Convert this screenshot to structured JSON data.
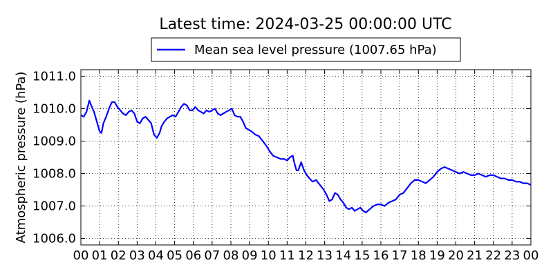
{
  "chart_data": {
    "type": "line",
    "title": "Latest time: 2024-03-25 00:00:00 UTC",
    "xlabel": "",
    "ylabel": "Atmospheric pressure (hPa)",
    "xlim": [
      0,
      24
    ],
    "ylim": [
      1005.8,
      1011.2
    ],
    "x_ticks": [
      "00",
      "01",
      "02",
      "03",
      "04",
      "05",
      "06",
      "07",
      "08",
      "09",
      "10",
      "11",
      "12",
      "13",
      "14",
      "15",
      "16",
      "17",
      "18",
      "19",
      "20",
      "21",
      "22",
      "23",
      "00"
    ],
    "y_ticks": [
      "1006.0",
      "1007.0",
      "1008.0",
      "1009.0",
      "1010.0",
      "1011.0"
    ],
    "grid": true,
    "legend_position": "top-center",
    "series": [
      {
        "name": "Mean sea level pressure (1007.65 hPa)",
        "color": "#0000ff",
        "x": [
          0.0,
          0.15,
          0.3,
          0.45,
          0.55,
          0.7,
          0.85,
          1.0,
          1.1,
          1.2,
          1.35,
          1.5,
          1.65,
          1.8,
          1.95,
          2.1,
          2.25,
          2.4,
          2.55,
          2.7,
          2.85,
          3.0,
          3.15,
          3.3,
          3.45,
          3.6,
          3.75,
          3.9,
          4.05,
          4.2,
          4.3,
          4.45,
          4.6,
          4.75,
          4.9,
          5.05,
          5.2,
          5.35,
          5.5,
          5.65,
          5.8,
          5.95,
          6.1,
          6.25,
          6.4,
          6.55,
          6.7,
          6.85,
          7.0,
          7.15,
          7.3,
          7.45,
          7.6,
          7.75,
          7.9,
          8.05,
          8.2,
          8.35,
          8.5,
          8.65,
          8.8,
          8.95,
          9.1,
          9.3,
          9.5,
          9.7,
          9.9,
          10.05,
          10.25,
          10.45,
          10.65,
          10.85,
          11.0,
          11.15,
          11.3,
          11.4,
          11.5,
          11.6,
          11.75,
          11.9,
          12.05,
          12.2,
          12.35,
          12.55,
          12.75,
          12.95,
          13.1,
          13.25,
          13.4,
          13.55,
          13.7,
          13.85,
          14.0,
          14.15,
          14.3,
          14.45,
          14.6,
          14.75,
          14.9,
          15.05,
          15.2,
          15.4,
          15.6,
          15.8,
          16.0,
          16.2,
          16.4,
          16.6,
          16.8,
          17.0,
          17.2,
          17.4,
          17.6,
          17.8,
          18.0,
          18.2,
          18.4,
          18.6,
          18.8,
          19.0,
          19.2,
          19.4,
          19.6,
          19.8,
          20.0,
          20.2,
          20.4,
          20.6,
          20.8,
          21.0,
          21.2,
          21.4,
          21.6,
          21.8,
          22.0,
          22.2,
          22.4,
          22.6,
          22.8,
          23.0,
          23.2,
          23.4,
          23.6,
          23.8,
          24.0
        ],
        "y": [
          1009.8,
          1009.75,
          1009.9,
          1010.25,
          1010.1,
          1009.9,
          1009.6,
          1009.3,
          1009.25,
          1009.55,
          1009.75,
          1010.0,
          1010.2,
          1010.2,
          1010.05,
          1009.95,
          1009.85,
          1009.8,
          1009.9,
          1009.95,
          1009.85,
          1009.6,
          1009.55,
          1009.7,
          1009.75,
          1009.65,
          1009.55,
          1009.2,
          1009.1,
          1009.25,
          1009.45,
          1009.6,
          1009.7,
          1009.75,
          1009.8,
          1009.75,
          1009.9,
          1010.05,
          1010.15,
          1010.1,
          1009.95,
          1009.95,
          1010.05,
          1009.95,
          1009.9,
          1009.85,
          1009.95,
          1009.9,
          1009.95,
          1010.0,
          1009.85,
          1009.8,
          1009.85,
          1009.9,
          1009.95,
          1010.0,
          1009.8,
          1009.75,
          1009.75,
          1009.6,
          1009.4,
          1009.35,
          1009.3,
          1009.2,
          1009.15,
          1009.0,
          1008.85,
          1008.7,
          1008.55,
          1008.5,
          1008.45,
          1008.45,
          1008.4,
          1008.5,
          1008.55,
          1008.3,
          1008.1,
          1008.1,
          1008.35,
          1008.1,
          1007.95,
          1007.85,
          1007.75,
          1007.8,
          1007.65,
          1007.5,
          1007.35,
          1007.15,
          1007.2,
          1007.4,
          1007.35,
          1007.2,
          1007.1,
          1006.95,
          1006.9,
          1006.95,
          1006.85,
          1006.9,
          1006.95,
          1006.85,
          1006.8,
          1006.9,
          1007.0,
          1007.05,
          1007.05,
          1007.0,
          1007.1,
          1007.15,
          1007.2,
          1007.35,
          1007.4,
          1007.55,
          1007.7,
          1007.8,
          1007.8,
          1007.75,
          1007.7,
          1007.8,
          1007.9,
          1008.05,
          1008.15,
          1008.2,
          1008.15,
          1008.1,
          1008.05,
          1008.0,
          1008.05,
          1008.0,
          1007.95,
          1007.95,
          1008.0,
          1007.95,
          1007.9,
          1007.95,
          1007.95,
          1007.9,
          1007.85,
          1007.85,
          1007.8,
          1007.8,
          1007.75,
          1007.75,
          1007.7,
          1007.7,
          1007.65
        ]
      }
    ]
  }
}
